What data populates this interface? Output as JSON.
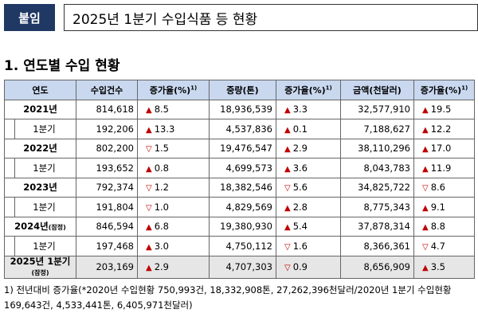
{
  "header": {
    "badge": "붙임",
    "title": "2025년 1분기 수입식품 등 현황"
  },
  "section_title": "1. 연도별 수입 현황",
  "table": {
    "columns": [
      "연도",
      "수입건수",
      {
        "text": "증가율(%)",
        "sup": "1)"
      },
      "중량(톤)",
      {
        "text": "증가율(%)",
        "sup": "1)"
      },
      "금액(천달러)",
      {
        "text": "증가율(%)",
        "sup": "1)"
      }
    ],
    "groups": [
      {
        "year": {
          "label": "2021년",
          "cells": [
            "814,618",
            {
              "arrow": "▲",
              "value": "8.5"
            },
            "18,936,539",
            {
              "arrow": "▲",
              "value": "3.3"
            },
            "32,577,910",
            {
              "arrow": "▲",
              "value": "19.5"
            }
          ]
        },
        "q1": {
          "label": "1분기",
          "cells": [
            "192,206",
            {
              "arrow": "▲",
              "value": "13.3"
            },
            "4,537,836",
            {
              "arrow": "▲",
              "value": "0.1"
            },
            "7,188,627",
            {
              "arrow": "▲",
              "value": "12.2"
            }
          ]
        }
      },
      {
        "year": {
          "label": "2022년",
          "cells": [
            "802,200",
            {
              "arrow": "▽",
              "value": "1.5"
            },
            "19,476,547",
            {
              "arrow": "▲",
              "value": "2.9"
            },
            "38,110,296",
            {
              "arrow": "▲",
              "value": "17.0"
            }
          ]
        },
        "q1": {
          "label": "1분기",
          "cells": [
            "193,652",
            {
              "arrow": "▲",
              "value": "0.8"
            },
            "4,699,573",
            {
              "arrow": "▲",
              "value": "3.6"
            },
            "8,043,783",
            {
              "arrow": "▲",
              "value": "11.9"
            }
          ]
        }
      },
      {
        "year": {
          "label": "2023년",
          "cells": [
            "792,374",
            {
              "arrow": "▽",
              "value": "1.2"
            },
            "18,382,546",
            {
              "arrow": "▽",
              "value": "5.6"
            },
            "34,825,722",
            {
              "arrow": "▽",
              "value": "8.6"
            }
          ]
        },
        "q1": {
          "label": "1분기",
          "cells": [
            "191,804",
            {
              "arrow": "▽",
              "value": "1.0"
            },
            "4,829,569",
            {
              "arrow": "▲",
              "value": "2.8"
            },
            "8,775,343",
            {
              "arrow": "▲",
              "value": "9.1"
            }
          ]
        }
      },
      {
        "year": {
          "label": "2024년",
          "note": "(잠정)",
          "cells": [
            "846,594",
            {
              "arrow": "▲",
              "value": "6.8"
            },
            "19,380,930",
            {
              "arrow": "▲",
              "value": "5.4"
            },
            "37,878,314",
            {
              "arrow": "▲",
              "value": "8.8"
            }
          ]
        },
        "q1": {
          "label": "1분기",
          "cells": [
            "197,468",
            {
              "arrow": "▲",
              "value": "3.0"
            },
            "4,750,112",
            {
              "arrow": "▽",
              "value": "1.6"
            },
            "8,366,361",
            {
              "arrow": "▽",
              "value": "4.7"
            }
          ]
        }
      },
      {
        "year": {
          "label": "2025년 1분기",
          "note": "(잠정)",
          "cells": [
            "203,169",
            {
              "arrow": "▲",
              "value": "2.9"
            },
            "4,707,303",
            {
              "arrow": "▽",
              "value": "0.9"
            },
            "8,656,909",
            {
              "arrow": "▲",
              "value": "3.5"
            }
          ]
        }
      }
    ]
  },
  "footnote": "1) 전년대비 증가율(*2020년 수입현황 750,993건, 18,332,908톤, 27,262,396천달러/2020년 1분기 수입현황 169,643건, 4,533,441톤, 6,405,971천달러)"
}
